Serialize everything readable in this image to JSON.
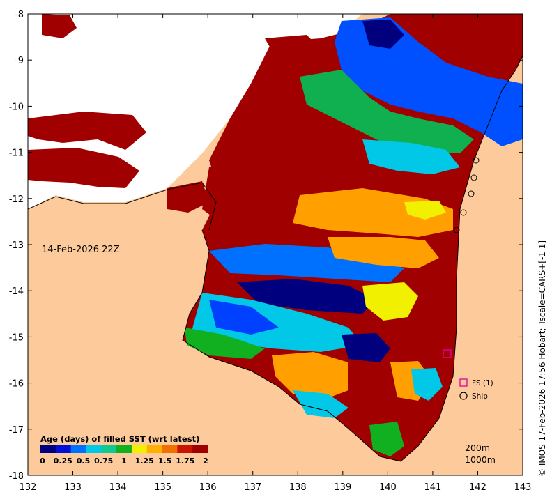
{
  "map": {
    "timestamp": "14-Feb-2026 22Z",
    "credit": "© IMOS 17-Feb-2026 17:56 Hobart; Tscale=CARS+[-1 1]",
    "x_axis": {
      "ticks": [
        132,
        133,
        134,
        135,
        136,
        137,
        138,
        139,
        140,
        141,
        142,
        143
      ],
      "range": [
        132,
        143
      ]
    },
    "y_axis": {
      "ticks": [
        -8,
        -9,
        -10,
        -11,
        -12,
        -13,
        -14,
        -15,
        -16,
        -17,
        -18
      ],
      "range": [
        -18,
        -8
      ]
    },
    "colorbar": {
      "title": "Age (days) of filled SST (wrt latest)",
      "labels": [
        "0",
        "0.25",
        "0.5",
        "0.75",
        "1",
        "1.25",
        "1.5",
        "1.75",
        "2"
      ],
      "colors": [
        "#00007f",
        "#0010d8",
        "#0070ff",
        "#00c8e6",
        "#10c890",
        "#10b020",
        "#f0f000",
        "#ffb000",
        "#f07000",
        "#c81400",
        "#a00000"
      ]
    },
    "markers": {
      "fs_label": "FS (1)",
      "ship_label": "Ship",
      "fs_color": "#e0009a"
    },
    "isobaths": {
      "shallow": "200m",
      "deep": "1000m"
    },
    "colors": {
      "land": "#fdcb9b",
      "no_data": "#ffffff",
      "dark_red": "#a00000",
      "navy": "#00007f",
      "blue": "#0040ff",
      "cyan": "#00c8e6",
      "green": "#10b050",
      "yellow": "#f0f000",
      "orange": "#ffa000"
    }
  }
}
